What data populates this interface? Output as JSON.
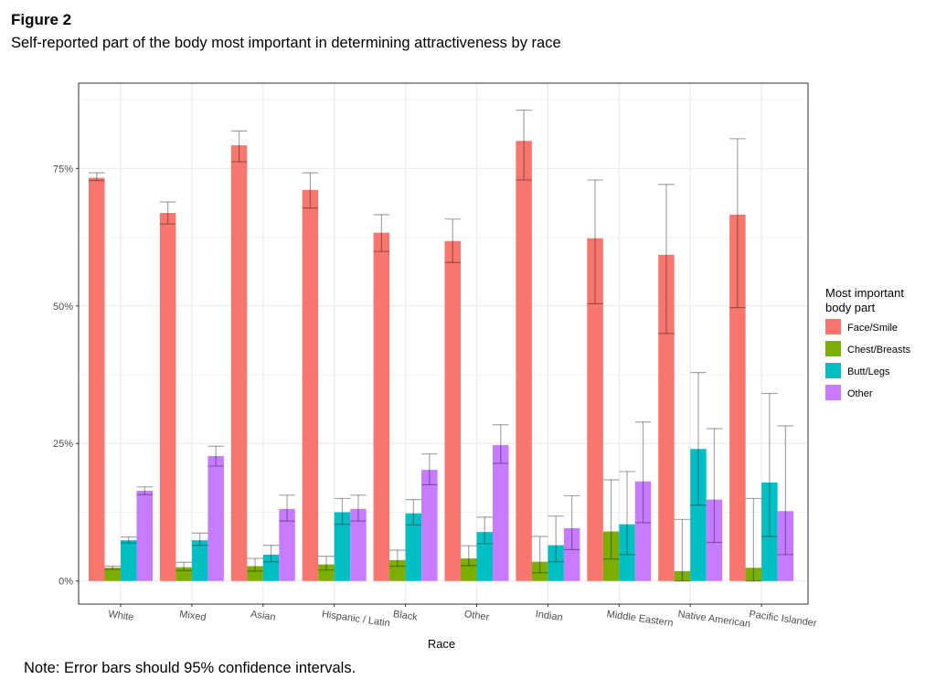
{
  "figure": {
    "title": "Figure 2",
    "subtitle": "Self-reported part of the body most important in determining attractiveness by race",
    "note": "Note: Error bars should 95% confidence intervals."
  },
  "chart_data": {
    "type": "bar",
    "xlabel": "Race",
    "ylabel": "",
    "ylim": [
      -4.2,
      90.5
    ],
    "yticks": [
      0,
      25,
      50,
      75
    ],
    "ytick_labels": [
      "0%",
      "25%",
      "50%",
      "75%"
    ],
    "grid": true,
    "legend": {
      "title": "Most important body part",
      "title_lines": [
        "Most important",
        "body part"
      ],
      "position": "right"
    },
    "categories": [
      "White",
      "Mixed",
      "Asian",
      "Hispanic / Latin",
      "Black",
      "Other",
      "Indian",
      "Middle Eastern",
      "Native American",
      "Pacific Islander"
    ],
    "series": [
      {
        "name": "Face/Smile",
        "color": "#F8766D",
        "values": [
          73.3,
          66.9,
          79.2,
          71.1,
          63.3,
          61.8,
          80.0,
          62.3,
          59.3,
          66.6
        ],
        "lower": [
          72.8,
          64.9,
          76.2,
          67.8,
          59.9,
          57.9,
          72.9,
          50.4,
          45.0,
          49.7
        ],
        "upper": [
          74.2,
          68.9,
          81.8,
          74.2,
          66.6,
          65.8,
          85.6,
          72.9,
          72.1,
          80.4
        ]
      },
      {
        "name": "Chest/Breasts",
        "color": "#7CAE00",
        "values": [
          2.4,
          2.5,
          2.7,
          3.0,
          3.8,
          4.1,
          3.5,
          9.0,
          1.8,
          2.4
        ],
        "lower": [
          2.1,
          1.9,
          1.8,
          2.0,
          2.7,
          2.8,
          1.5,
          4.0,
          0.0,
          0.0
        ],
        "upper": [
          2.7,
          3.4,
          4.1,
          4.5,
          5.6,
          6.4,
          8.1,
          18.4,
          11.2,
          15.0
        ]
      },
      {
        "name": "Butt/Legs",
        "color": "#00BFC4",
        "values": [
          7.4,
          7.4,
          4.8,
          12.5,
          12.3,
          8.9,
          6.5,
          10.3,
          24.0,
          17.9
        ],
        "lower": [
          6.9,
          6.5,
          3.5,
          10.3,
          10.2,
          6.8,
          3.5,
          4.8,
          13.8,
          8.1
        ],
        "upper": [
          8.0,
          8.7,
          6.5,
          15.0,
          14.8,
          11.6,
          11.8,
          19.9,
          37.9,
          34.1
        ]
      },
      {
        "name": "Other",
        "color": "#C77CFF",
        "values": [
          16.4,
          22.7,
          13.1,
          13.1,
          20.2,
          24.7,
          9.6,
          18.1,
          14.8,
          12.7
        ],
        "lower": [
          15.7,
          20.9,
          10.9,
          10.9,
          17.5,
          21.4,
          5.7,
          10.6,
          7.0,
          4.8
        ],
        "upper": [
          17.1,
          24.5,
          15.6,
          15.6,
          23.1,
          28.4,
          15.5,
          28.9,
          27.7,
          28.2
        ]
      }
    ]
  }
}
